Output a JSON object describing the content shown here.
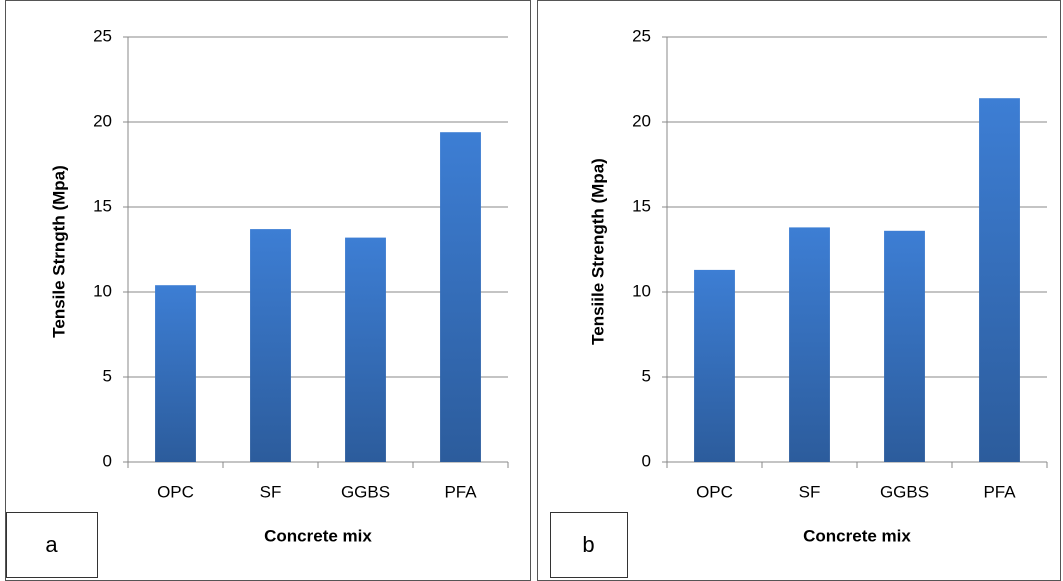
{
  "chart_data": [
    {
      "type": "bar",
      "ylabel": "Tensile  Strngth (Mpa)",
      "xlabel": "Concrete mix",
      "panel_label": "a",
      "categories": [
        "OPC",
        "SF",
        "GGBS",
        "PFA"
      ],
      "values": [
        10.4,
        13.7,
        13.2,
        19.4
      ],
      "color": "#3a74c4",
      "ylim": [
        0,
        25
      ],
      "yticks": [
        0,
        5,
        10,
        15,
        20,
        25
      ],
      "grid": true
    },
    {
      "type": "bar",
      "ylabel": "Tensiile Strength  (Mpa)",
      "xlabel": "Concrete mix",
      "panel_label": "b",
      "categories": [
        "OPC",
        "SF",
        "GGBS",
        "PFA"
      ],
      "values": [
        11.3,
        13.8,
        13.6,
        21.4
      ],
      "color": "#3a74c4",
      "ylim": [
        0,
        25
      ],
      "yticks": [
        0,
        5,
        10,
        15,
        20,
        25
      ],
      "grid": true
    }
  ]
}
